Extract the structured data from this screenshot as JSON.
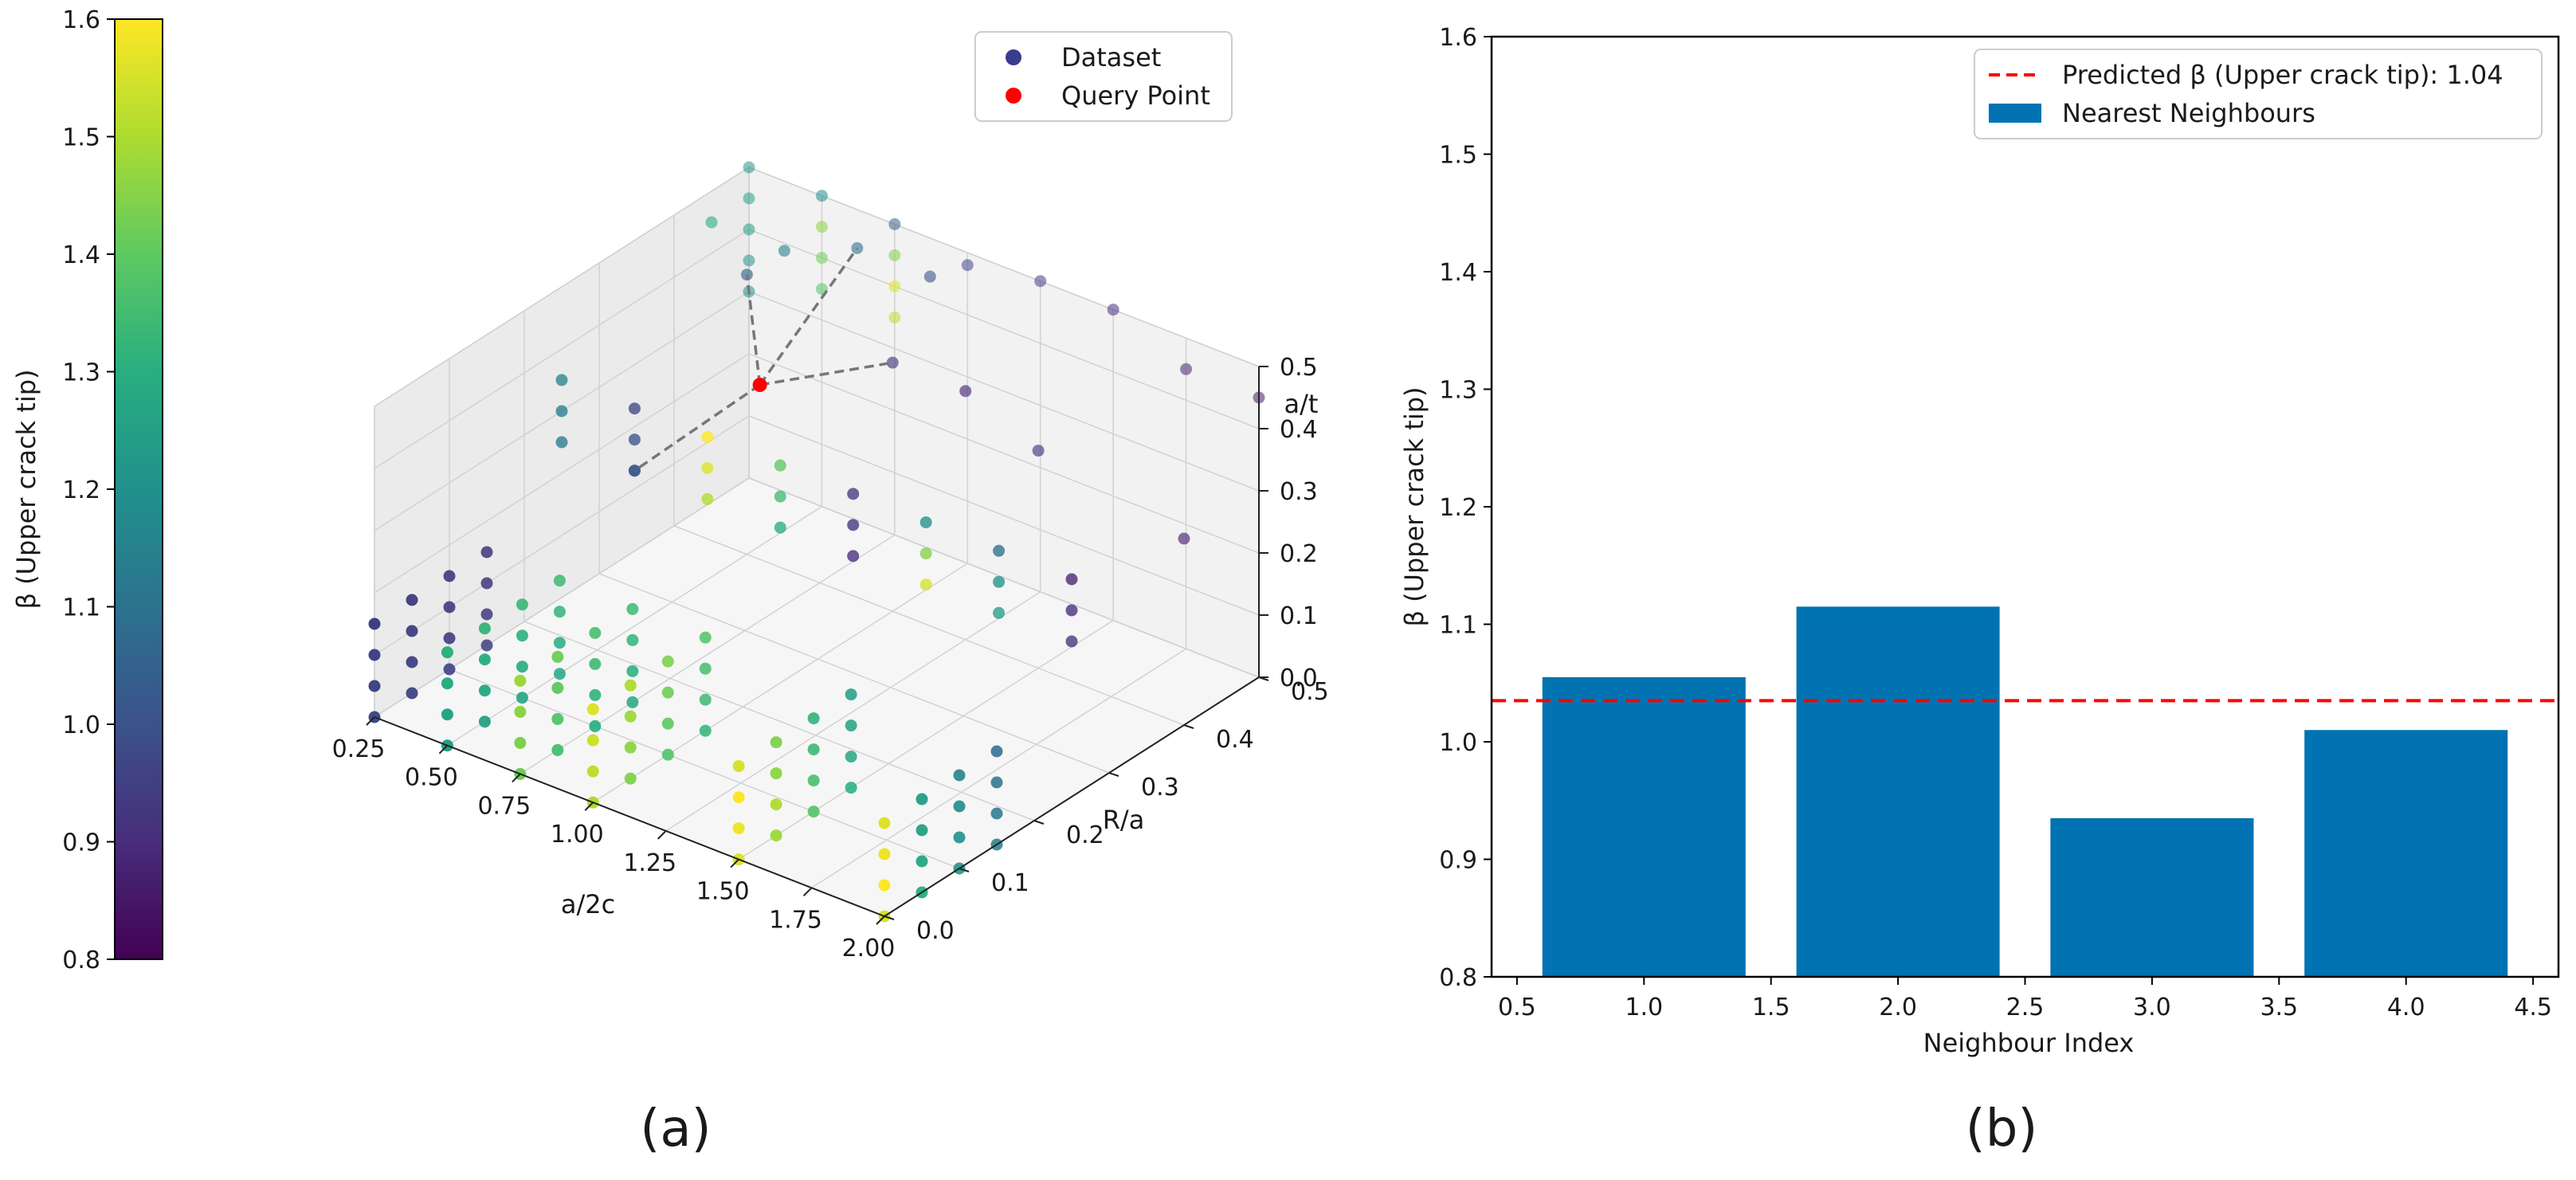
{
  "chart_data": [
    {
      "type": "scatter",
      "projection": "3d",
      "panel_label": "(a)",
      "xlabel": "a/2c",
      "ylabel": "R/a",
      "zlabel": "a/t",
      "xlim": [
        0.25,
        2.0
      ],
      "ylim": [
        0.0,
        0.5
      ],
      "zlim": [
        0.0,
        0.5
      ],
      "xticks": [
        "0.25",
        "0.50",
        "0.75",
        "1.00",
        "1.25",
        "1.50",
        "1.75",
        "2.00"
      ],
      "yticks": [
        "0.0",
        "0.1",
        "0.2",
        "0.3",
        "0.4",
        "0.5"
      ],
      "zticks": [
        "0.0",
        "0.1",
        "0.2",
        "0.3",
        "0.4",
        "0.5"
      ],
      "legend": [
        "Dataset",
        "Query Point"
      ],
      "legend_colors": [
        "#3b3b8f",
        "#ff0000"
      ],
      "legend_position": "top-right",
      "colorbar": {
        "label": "β (Upper crack tip)",
        "min": 0.8,
        "max": 1.6,
        "ticks": [
          "0.8",
          "0.9",
          "1.0",
          "1.1",
          "1.2",
          "1.3",
          "1.4",
          "1.5",
          "1.6"
        ],
        "colormap": "viridis"
      },
      "query_point": {
        "x": 0.75,
        "y": 0.32,
        "z": 0.38
      },
      "neighbours": [
        {
          "x": 0.5,
          "y": 0.4,
          "z": 0.45
        },
        {
          "x": 0.75,
          "y": 0.45,
          "z": 0.5
        },
        {
          "x": 1.0,
          "y": 0.4,
          "z": 0.4
        },
        {
          "x": 0.5,
          "y": 0.25,
          "z": 0.25
        }
      ],
      "points": [
        {
          "x": 0.25,
          "y": 0.0,
          "z": 0.0,
          "b": 0.98
        },
        {
          "x": 0.25,
          "y": 0.0,
          "z": 0.05,
          "b": 0.97
        },
        {
          "x": 0.25,
          "y": 0.0,
          "z": 0.1,
          "b": 0.96
        },
        {
          "x": 0.25,
          "y": 0.0,
          "z": 0.15,
          "b": 0.95
        },
        {
          "x": 0.25,
          "y": 0.05,
          "z": 0.0,
          "b": 0.97
        },
        {
          "x": 0.25,
          "y": 0.05,
          "z": 0.05,
          "b": 0.96
        },
        {
          "x": 0.25,
          "y": 0.05,
          "z": 0.1,
          "b": 0.95
        },
        {
          "x": 0.25,
          "y": 0.05,
          "z": 0.15,
          "b": 0.94
        },
        {
          "x": 0.25,
          "y": 0.1,
          "z": 0.0,
          "b": 0.96
        },
        {
          "x": 0.25,
          "y": 0.1,
          "z": 0.05,
          "b": 0.95
        },
        {
          "x": 0.25,
          "y": 0.1,
          "z": 0.1,
          "b": 0.94
        },
        {
          "x": 0.25,
          "y": 0.1,
          "z": 0.15,
          "b": 0.93
        },
        {
          "x": 0.25,
          "y": 0.15,
          "z": 0.0,
          "b": 0.95
        },
        {
          "x": 0.25,
          "y": 0.15,
          "z": 0.05,
          "b": 0.94
        },
        {
          "x": 0.25,
          "y": 0.15,
          "z": 0.1,
          "b": 0.93
        },
        {
          "x": 0.25,
          "y": 0.15,
          "z": 0.15,
          "b": 0.92
        },
        {
          "x": 0.5,
          "y": 0.0,
          "z": 0.0,
          "b": 1.25
        },
        {
          "x": 0.5,
          "y": 0.0,
          "z": 0.05,
          "b": 1.27
        },
        {
          "x": 0.5,
          "y": 0.0,
          "z": 0.1,
          "b": 1.29
        },
        {
          "x": 0.5,
          "y": 0.0,
          "z": 0.15,
          "b": 1.31
        },
        {
          "x": 0.5,
          "y": 0.05,
          "z": 0.0,
          "b": 1.26
        },
        {
          "x": 0.5,
          "y": 0.05,
          "z": 0.05,
          "b": 1.28
        },
        {
          "x": 0.5,
          "y": 0.05,
          "z": 0.1,
          "b": 1.3
        },
        {
          "x": 0.5,
          "y": 0.05,
          "z": 0.15,
          "b": 1.32
        },
        {
          "x": 0.5,
          "y": 0.1,
          "z": 0.0,
          "b": 1.27
        },
        {
          "x": 0.5,
          "y": 0.1,
          "z": 0.05,
          "b": 1.29
        },
        {
          "x": 0.5,
          "y": 0.1,
          "z": 0.1,
          "b": 1.31
        },
        {
          "x": 0.5,
          "y": 0.1,
          "z": 0.15,
          "b": 1.33
        },
        {
          "x": 0.5,
          "y": 0.15,
          "z": 0.0,
          "b": 1.28
        },
        {
          "x": 0.5,
          "y": 0.15,
          "z": 0.05,
          "b": 1.3
        },
        {
          "x": 0.5,
          "y": 0.15,
          "z": 0.1,
          "b": 1.32
        },
        {
          "x": 0.5,
          "y": 0.15,
          "z": 0.15,
          "b": 1.34
        },
        {
          "x": 0.75,
          "y": 0.0,
          "z": 0.0,
          "b": 1.42
        },
        {
          "x": 0.75,
          "y": 0.0,
          "z": 0.05,
          "b": 1.44
        },
        {
          "x": 0.75,
          "y": 0.0,
          "z": 0.1,
          "b": 1.46
        },
        {
          "x": 0.75,
          "y": 0.0,
          "z": 0.15,
          "b": 1.48
        },
        {
          "x": 0.75,
          "y": 0.05,
          "z": 0.0,
          "b": 1.36
        },
        {
          "x": 0.75,
          "y": 0.05,
          "z": 0.05,
          "b": 1.38
        },
        {
          "x": 0.75,
          "y": 0.05,
          "z": 0.1,
          "b": 1.4
        },
        {
          "x": 0.75,
          "y": 0.05,
          "z": 0.15,
          "b": 1.42
        },
        {
          "x": 0.75,
          "y": 0.1,
          "z": 0.0,
          "b": 1.3
        },
        {
          "x": 0.75,
          "y": 0.1,
          "z": 0.05,
          "b": 1.32
        },
        {
          "x": 0.75,
          "y": 0.1,
          "z": 0.1,
          "b": 1.34
        },
        {
          "x": 0.75,
          "y": 0.1,
          "z": 0.15,
          "b": 1.36
        },
        {
          "x": 0.75,
          "y": 0.15,
          "z": 0.0,
          "b": 1.28
        },
        {
          "x": 0.75,
          "y": 0.15,
          "z": 0.05,
          "b": 1.3
        },
        {
          "x": 0.75,
          "y": 0.15,
          "z": 0.1,
          "b": 1.32
        },
        {
          "x": 0.75,
          "y": 0.15,
          "z": 0.15,
          "b": 1.34
        },
        {
          "x": 1.0,
          "y": 0.0,
          "z": 0.0,
          "b": 1.5
        },
        {
          "x": 1.0,
          "y": 0.0,
          "z": 0.05,
          "b": 1.52
        },
        {
          "x": 1.0,
          "y": 0.0,
          "z": 0.1,
          "b": 1.54
        },
        {
          "x": 1.0,
          "y": 0.0,
          "z": 0.15,
          "b": 1.56
        },
        {
          "x": 1.0,
          "y": 0.05,
          "z": 0.0,
          "b": 1.44
        },
        {
          "x": 1.0,
          "y": 0.05,
          "z": 0.05,
          "b": 1.46
        },
        {
          "x": 1.0,
          "y": 0.05,
          "z": 0.1,
          "b": 1.48
        },
        {
          "x": 1.0,
          "y": 0.05,
          "z": 0.15,
          "b": 1.5
        },
        {
          "x": 1.0,
          "y": 0.1,
          "z": 0.0,
          "b": 1.38
        },
        {
          "x": 1.0,
          "y": 0.1,
          "z": 0.05,
          "b": 1.4
        },
        {
          "x": 1.0,
          "y": 0.1,
          "z": 0.1,
          "b": 1.42
        },
        {
          "x": 1.0,
          "y": 0.1,
          "z": 0.15,
          "b": 1.44
        },
        {
          "x": 1.0,
          "y": 0.15,
          "z": 0.0,
          "b": 1.32
        },
        {
          "x": 1.0,
          "y": 0.15,
          "z": 0.05,
          "b": 1.34
        },
        {
          "x": 1.0,
          "y": 0.15,
          "z": 0.1,
          "b": 1.36
        },
        {
          "x": 1.0,
          "y": 0.15,
          "z": 0.15,
          "b": 1.38
        },
        {
          "x": 1.5,
          "y": 0.0,
          "z": 0.0,
          "b": 1.56
        },
        {
          "x": 1.5,
          "y": 0.0,
          "z": 0.05,
          "b": 1.58
        },
        {
          "x": 1.5,
          "y": 0.0,
          "z": 0.1,
          "b": 1.6
        },
        {
          "x": 1.5,
          "y": 0.0,
          "z": 0.15,
          "b": 1.55
        },
        {
          "x": 1.5,
          "y": 0.05,
          "z": 0.0,
          "b": 1.48
        },
        {
          "x": 1.5,
          "y": 0.05,
          "z": 0.05,
          "b": 1.5
        },
        {
          "x": 1.5,
          "y": 0.05,
          "z": 0.1,
          "b": 1.46
        },
        {
          "x": 1.5,
          "y": 0.05,
          "z": 0.15,
          "b": 1.44
        },
        {
          "x": 1.5,
          "y": 0.1,
          "z": 0.0,
          "b": 1.38
        },
        {
          "x": 1.5,
          "y": 0.1,
          "z": 0.05,
          "b": 1.36
        },
        {
          "x": 1.5,
          "y": 0.1,
          "z": 0.1,
          "b": 1.34
        },
        {
          "x": 1.5,
          "y": 0.1,
          "z": 0.15,
          "b": 1.32
        },
        {
          "x": 1.5,
          "y": 0.15,
          "z": 0.0,
          "b": 1.3
        },
        {
          "x": 1.5,
          "y": 0.15,
          "z": 0.05,
          "b": 1.28
        },
        {
          "x": 1.5,
          "y": 0.15,
          "z": 0.1,
          "b": 1.26
        },
        {
          "x": 1.5,
          "y": 0.15,
          "z": 0.15,
          "b": 1.24
        },
        {
          "x": 2.0,
          "y": 0.0,
          "z": 0.0,
          "b": 1.55
        },
        {
          "x": 2.0,
          "y": 0.0,
          "z": 0.05,
          "b": 1.6
        },
        {
          "x": 2.0,
          "y": 0.0,
          "z": 0.1,
          "b": 1.58
        },
        {
          "x": 2.0,
          "y": 0.0,
          "z": 0.15,
          "b": 1.56
        },
        {
          "x": 2.0,
          "y": 0.05,
          "z": 0.0,
          "b": 1.3
        },
        {
          "x": 2.0,
          "y": 0.05,
          "z": 0.05,
          "b": 1.28
        },
        {
          "x": 2.0,
          "y": 0.05,
          "z": 0.1,
          "b": 1.26
        },
        {
          "x": 2.0,
          "y": 0.05,
          "z": 0.15,
          "b": 1.24
        },
        {
          "x": 2.0,
          "y": 0.1,
          "z": 0.0,
          "b": 1.22
        },
        {
          "x": 2.0,
          "y": 0.1,
          "z": 0.05,
          "b": 1.2
        },
        {
          "x": 2.0,
          "y": 0.1,
          "z": 0.1,
          "b": 1.18
        },
        {
          "x": 2.0,
          "y": 0.1,
          "z": 0.15,
          "b": 1.16
        },
        {
          "x": 2.0,
          "y": 0.15,
          "z": 0.0,
          "b": 1.14
        },
        {
          "x": 2.0,
          "y": 0.15,
          "z": 0.05,
          "b": 1.12
        },
        {
          "x": 2.0,
          "y": 0.15,
          "z": 0.1,
          "b": 1.1
        },
        {
          "x": 2.0,
          "y": 0.15,
          "z": 0.15,
          "b": 1.08
        },
        {
          "x": 0.25,
          "y": 0.25,
          "z": 0.25,
          "b": 1.12
        },
        {
          "x": 0.25,
          "y": 0.25,
          "z": 0.3,
          "b": 1.14
        },
        {
          "x": 0.25,
          "y": 0.25,
          "z": 0.35,
          "b": 1.16
        },
        {
          "x": 0.5,
          "y": 0.25,
          "z": 0.25,
          "b": 1.04
        },
        {
          "x": 0.5,
          "y": 0.25,
          "z": 0.3,
          "b": 1.0
        },
        {
          "x": 0.5,
          "y": 0.25,
          "z": 0.35,
          "b": 0.97
        },
        {
          "x": 0.75,
          "y": 0.25,
          "z": 0.25,
          "b": 1.5
        },
        {
          "x": 0.75,
          "y": 0.25,
          "z": 0.3,
          "b": 1.56
        },
        {
          "x": 0.75,
          "y": 0.25,
          "z": 0.35,
          "b": 1.6
        },
        {
          "x": 1.0,
          "y": 0.25,
          "z": 0.25,
          "b": 1.3
        },
        {
          "x": 1.0,
          "y": 0.25,
          "z": 0.3,
          "b": 1.35
        },
        {
          "x": 1.0,
          "y": 0.25,
          "z": 0.35,
          "b": 1.4
        },
        {
          "x": 1.25,
          "y": 0.25,
          "z": 0.25,
          "b": 0.9
        },
        {
          "x": 1.25,
          "y": 0.25,
          "z": 0.3,
          "b": 0.92
        },
        {
          "x": 1.25,
          "y": 0.25,
          "z": 0.35,
          "b": 0.94
        },
        {
          "x": 1.5,
          "y": 0.25,
          "z": 0.25,
          "b": 1.55
        },
        {
          "x": 1.5,
          "y": 0.25,
          "z": 0.3,
          "b": 1.45
        },
        {
          "x": 1.5,
          "y": 0.25,
          "z": 0.35,
          "b": 1.2
        },
        {
          "x": 1.75,
          "y": 0.25,
          "z": 0.25,
          "b": 1.25
        },
        {
          "x": 1.75,
          "y": 0.25,
          "z": 0.3,
          "b": 1.2
        },
        {
          "x": 1.75,
          "y": 0.25,
          "z": 0.35,
          "b": 1.1
        },
        {
          "x": 2.0,
          "y": 0.25,
          "z": 0.25,
          "b": 0.92
        },
        {
          "x": 2.0,
          "y": 0.25,
          "z": 0.3,
          "b": 0.9
        },
        {
          "x": 2.0,
          "y": 0.25,
          "z": 0.35,
          "b": 0.88
        },
        {
          "x": 0.25,
          "y": 0.5,
          "z": 0.3,
          "b": 1.2
        },
        {
          "x": 0.25,
          "y": 0.5,
          "z": 0.35,
          "b": 1.22
        },
        {
          "x": 0.25,
          "y": 0.5,
          "z": 0.4,
          "b": 1.24
        },
        {
          "x": 0.25,
          "y": 0.5,
          "z": 0.45,
          "b": 1.26
        },
        {
          "x": 0.5,
          "y": 0.5,
          "z": 0.35,
          "b": 1.38
        },
        {
          "x": 0.5,
          "y": 0.5,
          "z": 0.4,
          "b": 1.42
        },
        {
          "x": 0.5,
          "y": 0.5,
          "z": 0.45,
          "b": 1.46
        },
        {
          "x": 0.75,
          "y": 0.5,
          "z": 0.35,
          "b": 1.52
        },
        {
          "x": 0.75,
          "y": 0.5,
          "z": 0.4,
          "b": 1.56
        },
        {
          "x": 0.75,
          "y": 0.5,
          "z": 0.45,
          "b": 1.44
        },
        {
          "x": 0.25,
          "y": 0.45,
          "z": 0.45,
          "b": 1.3
        },
        {
          "x": 0.5,
          "y": 0.45,
          "z": 0.45,
          "b": 1.15
        },
        {
          "x": 0.5,
          "y": 0.4,
          "z": 0.45,
          "b": 1.05
        },
        {
          "x": 0.75,
          "y": 0.45,
          "z": 0.5,
          "b": 1.1
        },
        {
          "x": 1.0,
          "y": 0.4,
          "z": 0.4,
          "b": 0.93
        },
        {
          "x": 0.5,
          "y": 0.25,
          "z": 0.25,
          "b": 1.01
        },
        {
          "x": 1.0,
          "y": 0.45,
          "z": 0.5,
          "b": 1.0
        },
        {
          "x": 1.25,
          "y": 0.5,
          "z": 0.5,
          "b": 0.95
        },
        {
          "x": 1.5,
          "y": 0.5,
          "z": 0.5,
          "b": 0.9
        },
        {
          "x": 1.75,
          "y": 0.5,
          "z": 0.45,
          "b": 0.88
        },
        {
          "x": 2.0,
          "y": 0.5,
          "z": 0.45,
          "b": 0.86
        },
        {
          "x": 1.25,
          "y": 0.4,
          "z": 0.4,
          "b": 0.89
        },
        {
          "x": 1.5,
          "y": 0.4,
          "z": 0.35,
          "b": 0.92
        },
        {
          "x": 2.0,
          "y": 0.4,
          "z": 0.3,
          "b": 0.87
        },
        {
          "x": 0.25,
          "y": 0.5,
          "z": 0.5,
          "b": 1.22
        },
        {
          "x": 0.5,
          "y": 0.5,
          "z": 0.5,
          "b": 1.18
        },
        {
          "x": 0.75,
          "y": 0.5,
          "z": 0.5,
          "b": 1.05
        },
        {
          "x": 1.0,
          "y": 0.5,
          "z": 0.48,
          "b": 0.97
        }
      ]
    },
    {
      "type": "bar",
      "panel_label": "(b)",
      "xlabel": "Neighbour Index",
      "ylabel": "β (Upper crack tip)",
      "categories": [
        1,
        2,
        3,
        4
      ],
      "values": [
        1.055,
        1.115,
        0.935,
        1.01
      ],
      "bar_color": "#0173b2",
      "bar_width": 0.8,
      "xlim": [
        0.4,
        4.6
      ],
      "ylim": [
        0.8,
        1.6
      ],
      "xticks": [
        "0.5",
        "1.0",
        "1.5",
        "2.0",
        "2.5",
        "3.0",
        "3.5",
        "4.0",
        "4.5"
      ],
      "yticks": [
        "0.8",
        "0.9",
        "1.0",
        "1.1",
        "1.2",
        "1.3",
        "1.4",
        "1.5",
        "1.6"
      ],
      "hline": {
        "value": 1.035,
        "color": "#ff0000",
        "style": "dashed"
      },
      "legend": [
        "Predicted β (Upper crack tip): 1.04",
        "Nearest Neighbours"
      ],
      "legend_position": "top-right"
    }
  ]
}
